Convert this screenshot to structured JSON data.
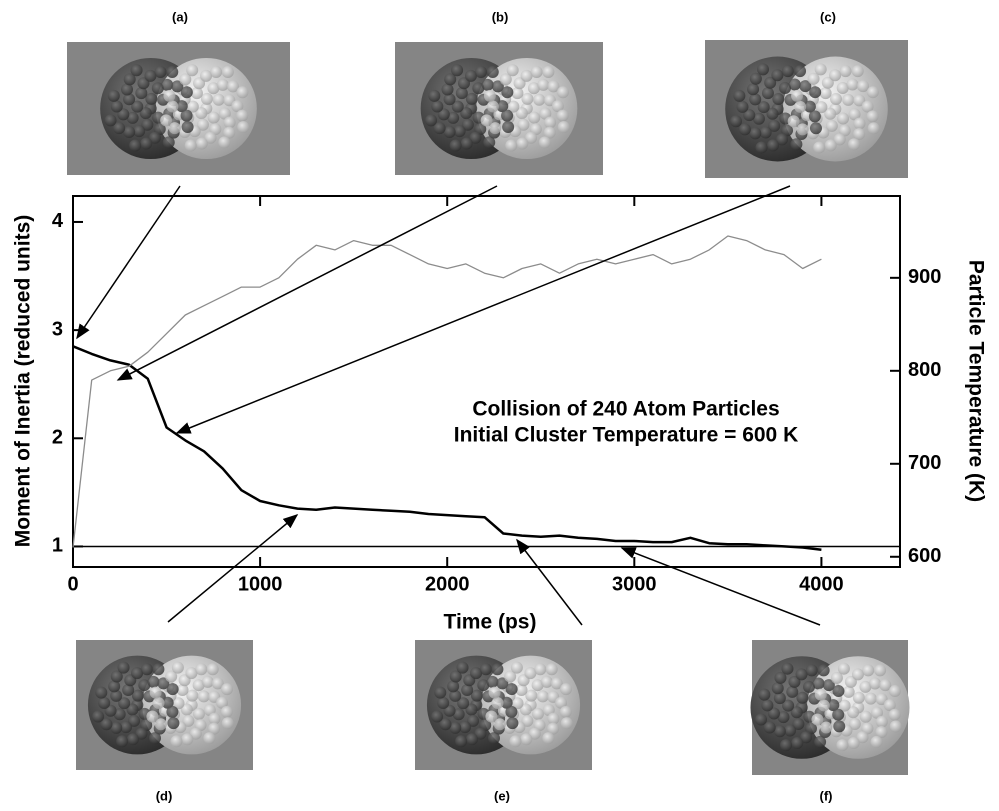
{
  "chart_data": {
    "type": "line",
    "xlabel": "Time (ps)",
    "ylabel": "Moment of Inertia (reduced units)",
    "y2label": "Particle Temperature (K)",
    "annotation": [
      "Collision of 240 Atom Particles",
      "Initial Cluster Temperature = 600 K"
    ],
    "panel_labels": [
      "(a)",
      "(b)",
      "(c)",
      "(d)",
      "(e)",
      "(f)"
    ],
    "x": [
      0,
      100,
      200,
      300,
      400,
      500,
      600,
      700,
      800,
      900,
      1000,
      1100,
      1200,
      1300,
      1400,
      1500,
      1600,
      1700,
      1800,
      1900,
      2000,
      2100,
      2200,
      2300,
      2400,
      2500,
      2600,
      2700,
      2800,
      2900,
      3000,
      3100,
      3200,
      3300,
      3400,
      3500,
      3600,
      3700,
      3800,
      3900,
      4000
    ],
    "series": [
      {
        "color": "#000000",
        "values": [
          2.85,
          2.78,
          2.72,
          2.68,
          2.55,
          2.1,
          1.98,
          1.88,
          1.72,
          1.52,
          1.42,
          1.38,
          1.35,
          1.34,
          1.36,
          1.35,
          1.34,
          1.33,
          1.32,
          1.3,
          1.29,
          1.28,
          1.27,
          1.12,
          1.1,
          1.09,
          1.1,
          1.08,
          1.07,
          1.05,
          1.05,
          1.04,
          1.04,
          1.08,
          1.03,
          1.02,
          1.02,
          1.01,
          1.0,
          0.99,
          0.97
        ]
      },
      {
        "color": "#8c8c8c",
        "axis": "y2",
        "values": [
          610,
          790,
          800,
          805,
          820,
          840,
          860,
          870,
          880,
          890,
          890,
          900,
          920,
          935,
          930,
          940,
          935,
          935,
          925,
          915,
          910,
          915,
          905,
          900,
          910,
          915,
          905,
          915,
          920,
          915,
          920,
          925,
          915,
          920,
          930,
          945,
          940,
          930,
          925,
          910,
          920
        ]
      }
    ],
    "hline": 1,
    "xlim": [
      0,
      4420
    ],
    "xticks": [
      0,
      1000,
      2000,
      3000,
      4000
    ],
    "ylim": [
      0.81,
      4.24
    ],
    "yticks": [
      1,
      2,
      3,
      4
    ],
    "y2lim": [
      589,
      988
    ],
    "y2ticks": [
      600,
      700,
      800,
      900
    ]
  }
}
